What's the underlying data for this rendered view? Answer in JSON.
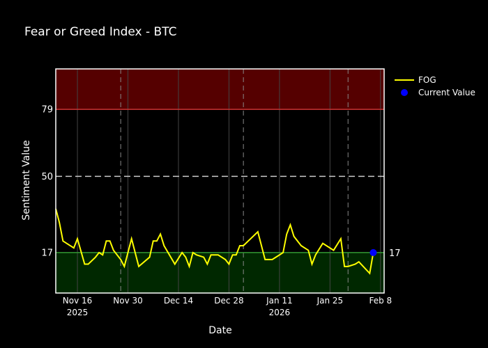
{
  "chart_data": {
    "type": "line",
    "title": "Fear or Greed Index - BTC",
    "xlabel": "Date",
    "ylabel": "Sentiment Value",
    "ylim": [
      -0.5,
      96.5
    ],
    "x_start": "2025-11-10",
    "x_end": "2026-02-09",
    "x_ticks": [
      {
        "date": "2025-11-16",
        "label": "Nov 16",
        "sublabel": "2025"
      },
      {
        "date": "2025-11-30",
        "label": "Nov 30",
        "sublabel": ""
      },
      {
        "date": "2025-12-14",
        "label": "Dec 14",
        "sublabel": ""
      },
      {
        "date": "2025-12-28",
        "label": "Dec 28",
        "sublabel": ""
      },
      {
        "date": "2026-01-11",
        "label": "Jan 11",
        "sublabel": "2026"
      },
      {
        "date": "2026-01-25",
        "label": "Jan 25",
        "sublabel": ""
      },
      {
        "date": "2026-02-08",
        "label": "Feb 8",
        "sublabel": ""
      }
    ],
    "y_ticks": [
      17,
      50,
      79
    ],
    "right_axis_label": "17",
    "thresholds": {
      "greed": 79,
      "neutral": 50,
      "fear": 17
    },
    "zone_colors": {
      "greed": "#550000",
      "fear": "#002800",
      "greed_line": "#cc3333",
      "fear_line": "#339933",
      "neutral_line": "#cccccc"
    },
    "vertical_dashed_dates": [
      "2025-11-28",
      "2026-01-01",
      "2026-01-30"
    ],
    "grid": true,
    "legend_position": "top-right",
    "series": [
      {
        "name": "FOG",
        "color": "#ffff00",
        "points": [
          [
            "2025-11-10",
            36
          ],
          [
            "2025-11-11",
            30
          ],
          [
            "2025-11-12",
            22
          ],
          [
            "2025-11-14",
            20
          ],
          [
            "2025-11-15",
            19
          ],
          [
            "2025-11-16",
            23
          ],
          [
            "2025-11-18",
            12
          ],
          [
            "2025-11-19",
            12
          ],
          [
            "2025-11-21",
            15
          ],
          [
            "2025-11-22",
            17
          ],
          [
            "2025-11-23",
            16
          ],
          [
            "2025-11-24",
            22
          ],
          [
            "2025-11-25",
            22
          ],
          [
            "2025-11-26",
            18
          ],
          [
            "2025-11-28",
            14
          ],
          [
            "2025-11-29",
            11
          ],
          [
            "2025-12-01",
            23
          ],
          [
            "2025-12-03",
            11
          ],
          [
            "2025-12-06",
            15
          ],
          [
            "2025-12-07",
            22
          ],
          [
            "2025-12-08",
            22
          ],
          [
            "2025-12-09",
            25
          ],
          [
            "2025-12-10",
            20
          ],
          [
            "2025-12-13",
            12
          ],
          [
            "2025-12-15",
            17
          ],
          [
            "2025-12-16",
            15
          ],
          [
            "2025-12-17",
            11
          ],
          [
            "2025-12-18",
            17
          ],
          [
            "2025-12-19",
            16
          ],
          [
            "2025-12-21",
            15
          ],
          [
            "2025-12-22",
            12
          ],
          [
            "2025-12-23",
            16
          ],
          [
            "2025-12-25",
            16
          ],
          [
            "2025-12-27",
            14
          ],
          [
            "2025-12-28",
            12
          ],
          [
            "2025-12-29",
            16
          ],
          [
            "2025-12-30",
            16
          ],
          [
            "2025-12-31",
            20
          ],
          [
            "2026-01-01",
            20
          ],
          [
            "2026-01-05",
            26
          ],
          [
            "2026-01-07",
            14
          ],
          [
            "2026-01-09",
            14
          ],
          [
            "2026-01-11",
            16
          ],
          [
            "2026-01-12",
            17
          ],
          [
            "2026-01-13",
            25
          ],
          [
            "2026-01-14",
            29
          ],
          [
            "2026-01-15",
            24
          ],
          [
            "2026-01-17",
            20
          ],
          [
            "2026-01-19",
            18
          ],
          [
            "2026-01-20",
            12
          ],
          [
            "2026-01-21",
            16
          ],
          [
            "2026-01-23",
            21
          ],
          [
            "2026-01-26",
            18
          ],
          [
            "2026-01-28",
            23
          ],
          [
            "2026-01-29",
            11
          ],
          [
            "2026-01-30",
            11
          ],
          [
            "2026-02-01",
            12
          ],
          [
            "2026-02-02",
            13
          ],
          [
            "2026-02-05",
            8
          ],
          [
            "2026-02-06",
            17
          ]
        ]
      },
      {
        "name": "Current Value",
        "color": "#0000ff",
        "marker": "circle",
        "points": [
          [
            "2026-02-06",
            17
          ]
        ]
      }
    ]
  }
}
